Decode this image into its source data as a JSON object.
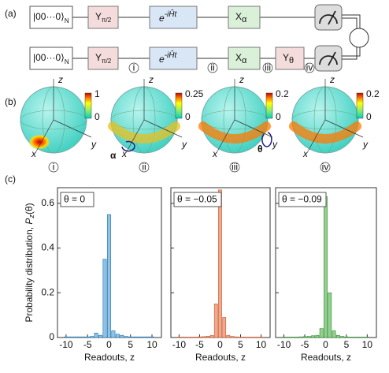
{
  "circuit": {
    "panel_label": "(a)",
    "state": "|00···0⟩",
    "state_sub": "N",
    "y_gate": {
      "base": "Y",
      "sub": "π/2"
    },
    "evolution": {
      "base": "e",
      "sup": "-iĤt"
    },
    "x_gate": {
      "base": "X",
      "sub": "α"
    },
    "y_theta": {
      "base": "Y",
      "sub": "θ"
    },
    "stages": [
      "i",
      "ii",
      "iii",
      "iv"
    ]
  },
  "spheres": {
    "panel_label": "(b)",
    "axes": {
      "x": "x",
      "y": "y",
      "z": "z"
    },
    "alpha": "α",
    "theta": "θ",
    "items": [
      {
        "stage": "i",
        "colorbar": [
          0,
          1
        ]
      },
      {
        "stage": "ii",
        "colorbar": [
          0,
          0.25
        ]
      },
      {
        "stage": "iii",
        "colorbar": [
          0,
          0.2
        ]
      },
      {
        "stage": "iv",
        "colorbar": [
          0,
          0.2
        ]
      }
    ]
  },
  "panel_c_label": "(c)",
  "chart_data": [
    {
      "type": "bar",
      "annotation": "θ = 0",
      "color": "#8fc3e4",
      "edge": "#1f6fb0",
      "y_label": "Probability distribution, ",
      "y_label_var": "P",
      "y_label_sub": "z",
      "y_label_arg": "(θ)",
      "x_label": "Readouts, z",
      "x": [
        -10,
        -9,
        -8,
        -7,
        -6,
        -5,
        -4,
        -3,
        -2,
        -1,
        0,
        1,
        2,
        3,
        4,
        5,
        6,
        7,
        8,
        9,
        10
      ],
      "values": [
        0.003,
        0.003,
        0.003,
        0.003,
        0.003,
        0.003,
        0.005,
        0.02,
        0.01,
        0.35,
        0.55,
        0.03,
        0.015,
        0.01,
        0.005,
        0.003,
        0.003,
        0.003,
        0.003,
        0.003,
        0.003
      ],
      "xlim": [
        -12,
        12.2
      ],
      "ylim": [
        0,
        0.67
      ],
      "xticks": [
        -10,
        -5,
        0,
        5,
        10
      ],
      "yticks": [
        0,
        0.2,
        0.4,
        0.6
      ]
    },
    {
      "type": "bar",
      "annotation": "θ = −0.05",
      "color": "#f0a88e",
      "edge": "#c8552a",
      "x_label": "Readouts, z",
      "x": [
        -10,
        -9,
        -8,
        -7,
        -6,
        -5,
        -4,
        -3,
        -2,
        -1,
        0,
        1,
        2,
        3,
        4,
        5,
        6,
        7,
        8,
        9,
        10
      ],
      "values": [
        0.002,
        0.002,
        0.002,
        0.002,
        0.002,
        0.003,
        0.004,
        0.006,
        0.01,
        0.15,
        0.66,
        0.09,
        0.01,
        0.005,
        0.003,
        0.002,
        0.002,
        0.002,
        0.002,
        0.002,
        0.002
      ],
      "xlim": [
        -12,
        12.2
      ],
      "ylim": [
        0,
        0.67
      ],
      "xticks": [
        -10,
        -5,
        0,
        5,
        10
      ],
      "yticks": [
        0,
        0.2,
        0.4,
        0.6
      ]
    },
    {
      "type": "bar",
      "annotation": "θ = −0.09",
      "color": "#93d08f",
      "edge": "#2e8b2e",
      "x_label": "Readouts, z",
      "x": [
        -10,
        -9,
        -8,
        -7,
        -6,
        -5,
        -4,
        -3,
        -2,
        -1,
        0,
        1,
        2,
        3,
        4,
        5,
        6,
        7,
        8,
        9,
        10
      ],
      "values": [
        0.002,
        0.002,
        0.002,
        0.002,
        0.003,
        0.004,
        0.005,
        0.008,
        0.01,
        0.04,
        0.63,
        0.2,
        0.03,
        0.01,
        0.005,
        0.003,
        0.002,
        0.002,
        0.002,
        0.002,
        0.002
      ],
      "xlim": [
        -12,
        12.2
      ],
      "ylim": [
        0,
        0.67
      ],
      "xticks": [
        -10,
        -5,
        0,
        5,
        10
      ],
      "yticks": [
        0,
        0.2,
        0.4,
        0.6
      ]
    }
  ]
}
